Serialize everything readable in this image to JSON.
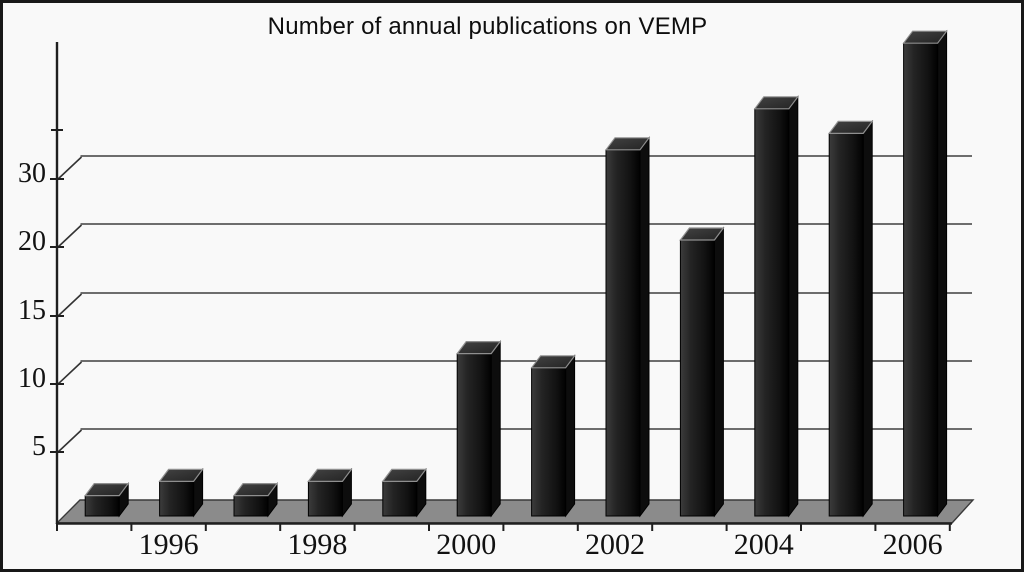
{
  "figure": {
    "title": "Number of annual publications on VEMP"
  },
  "chart_data": {
    "type": "bar",
    "title": "Number of annual publications on VEMP",
    "style": "3d-bars",
    "categories": [
      "1995",
      "1996",
      "1997",
      "1998",
      "1999",
      "2000",
      "2001",
      "2002",
      "2003",
      "2004",
      "2005",
      "2006"
    ],
    "values": [
      2,
      3,
      2,
      3,
      3,
      12,
      11,
      31,
      20,
      36,
      33,
      44
    ],
    "x_axis_tick_labels": [
      "1996",
      "1998",
      "2000",
      "2002",
      "2004",
      "2006"
    ],
    "y_axis_tick_labels": [
      "5",
      "10",
      "15",
      "20",
      "30"
    ],
    "y_axis_tick_values": [
      5,
      10,
      15,
      20,
      30
    ],
    "ylim": [
      0,
      45
    ],
    "xlabel": "",
    "ylabel": "",
    "grid": true,
    "legend": false,
    "colors": {
      "bar_front": "#1c1c1c",
      "bar_top": "#323232",
      "bar_side": "#0d0d0d",
      "bar_top_outline": "#8f8f8f",
      "floor": "#8b8b8b",
      "floor_outline": "#3a3a3a",
      "grid_line": "#3f3f3f",
      "axis": "#1f1f1f",
      "text": "#121212",
      "background": "#f9f9f9"
    }
  }
}
